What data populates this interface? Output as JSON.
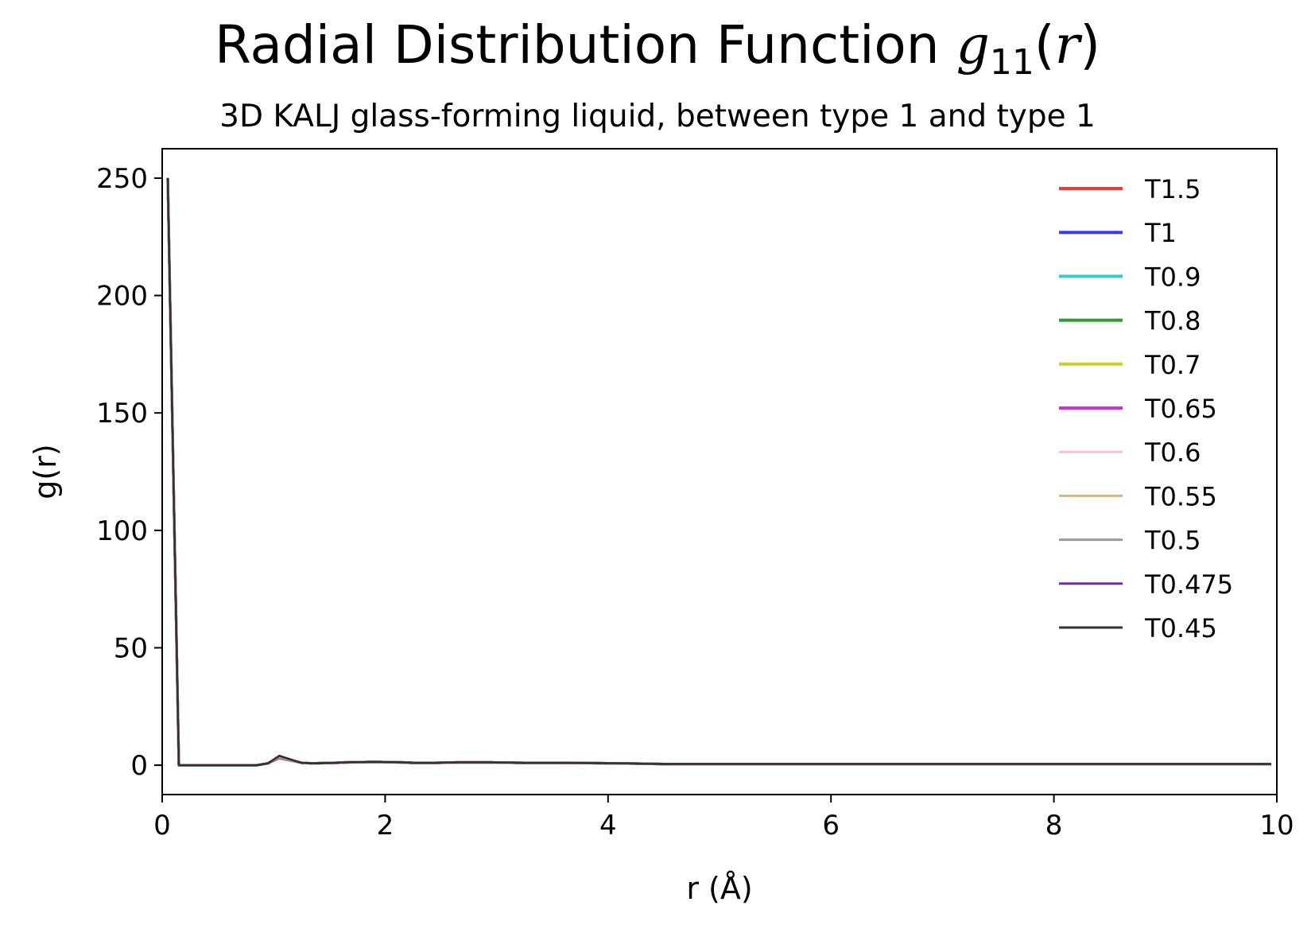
{
  "title": {
    "prefix": "Radial Distribution Function ",
    "func": "g",
    "subscript": "11",
    "arg_open": "(",
    "arg": "r",
    "arg_close": ")"
  },
  "subtitle": "3D KALJ glass-forming liquid, between type 1 and type 1",
  "chart_data": {
    "type": "line",
    "xlabel": "r (Å)",
    "ylabel": "g(r)",
    "xlim": [
      0,
      10
    ],
    "ylim": [
      -12.5,
      262.5
    ],
    "xticks": [
      0,
      2,
      4,
      6,
      8,
      10
    ],
    "yticks": [
      0,
      50,
      100,
      150,
      200,
      250
    ],
    "grid": false,
    "legend_position": "top-right",
    "x": [
      0.05,
      0.15,
      0.25,
      0.35,
      0.45,
      0.55,
      0.65,
      0.75,
      0.85,
      0.95,
      1.05,
      1.15,
      1.25,
      1.35,
      1.45,
      1.55,
      1.65,
      1.75,
      1.85,
      1.95,
      2.05,
      2.15,
      2.25,
      2.35,
      2.45,
      2.55,
      2.65,
      2.75,
      2.85,
      2.95,
      3.05,
      3.25,
      3.45,
      3.65,
      3.85,
      4.05,
      4.25,
      4.5,
      4.75,
      5.0,
      5.5,
      6.0,
      6.5,
      7.0,
      7.5,
      8.0,
      8.5,
      9.0,
      9.5,
      9.95
    ],
    "series": [
      {
        "name": "T1.5",
        "color": "#f03a3a",
        "values": [
          250,
          0,
          0,
          0,
          0,
          0,
          0,
          0,
          0,
          0.8,
          3.0,
          2.0,
          1.0,
          0.8,
          0.9,
          1.0,
          1.2,
          1.3,
          1.4,
          1.4,
          1.3,
          1.2,
          1.0,
          1.0,
          1.0,
          1.1,
          1.2,
          1.2,
          1.2,
          1.2,
          1.1,
          1.0,
          1.0,
          1.0,
          0.9,
          0.8,
          0.7,
          0.5,
          0.5,
          0.5,
          0.5,
          0.5,
          0.5,
          0.5,
          0.5,
          0.5,
          0.5,
          0.5,
          0.5,
          0.5
        ]
      },
      {
        "name": "T1",
        "color": "#3a3af0",
        "values": [
          250,
          0,
          0,
          0,
          0,
          0,
          0,
          0,
          0,
          0.8,
          3.2,
          2.1,
          1.0,
          0.8,
          0.9,
          1.0,
          1.2,
          1.3,
          1.4,
          1.4,
          1.3,
          1.2,
          1.0,
          1.0,
          1.0,
          1.1,
          1.2,
          1.2,
          1.2,
          1.2,
          1.1,
          1.0,
          1.0,
          1.0,
          0.9,
          0.8,
          0.7,
          0.5,
          0.5,
          0.5,
          0.5,
          0.5,
          0.5,
          0.5,
          0.5,
          0.5,
          0.5,
          0.5,
          0.5,
          0.5
        ]
      },
      {
        "name": "T0.9",
        "color": "#33cccc",
        "values": [
          250,
          0,
          0,
          0,
          0,
          0,
          0,
          0,
          0,
          0.8,
          3.3,
          2.1,
          1.0,
          0.8,
          0.9,
          1.0,
          1.2,
          1.3,
          1.4,
          1.4,
          1.3,
          1.2,
          1.0,
          1.0,
          1.0,
          1.1,
          1.2,
          1.2,
          1.2,
          1.2,
          1.1,
          1.0,
          1.0,
          1.0,
          0.9,
          0.8,
          0.7,
          0.5,
          0.5,
          0.5,
          0.5,
          0.5,
          0.5,
          0.5,
          0.5,
          0.5,
          0.5,
          0.5,
          0.5,
          0.5
        ]
      },
      {
        "name": "T0.8",
        "color": "#339933",
        "values": [
          250,
          0,
          0,
          0,
          0,
          0,
          0,
          0,
          0,
          0.8,
          3.4,
          2.2,
          1.0,
          0.8,
          0.9,
          1.0,
          1.2,
          1.3,
          1.4,
          1.4,
          1.3,
          1.2,
          1.0,
          1.0,
          1.0,
          1.1,
          1.2,
          1.2,
          1.2,
          1.2,
          1.1,
          1.0,
          1.0,
          1.0,
          0.9,
          0.8,
          0.7,
          0.5,
          0.5,
          0.5,
          0.5,
          0.5,
          0.5,
          0.5,
          0.5,
          0.5,
          0.5,
          0.5,
          0.5,
          0.5
        ]
      },
      {
        "name": "T0.7",
        "color": "#cccc33",
        "values": [
          250,
          0,
          0,
          0,
          0,
          0,
          0,
          0,
          0,
          0.8,
          3.5,
          2.2,
          1.0,
          0.8,
          0.9,
          1.0,
          1.2,
          1.3,
          1.4,
          1.4,
          1.3,
          1.2,
          1.0,
          1.0,
          1.0,
          1.1,
          1.2,
          1.2,
          1.2,
          1.2,
          1.1,
          1.0,
          1.0,
          1.0,
          0.9,
          0.8,
          0.7,
          0.5,
          0.5,
          0.5,
          0.5,
          0.5,
          0.5,
          0.5,
          0.5,
          0.5,
          0.5,
          0.5,
          0.5,
          0.5
        ]
      },
      {
        "name": "T0.65",
        "color": "#cc33cc",
        "values": [
          250,
          0,
          0,
          0,
          0,
          0,
          0,
          0,
          0,
          0.8,
          3.6,
          2.3,
          1.0,
          0.8,
          0.9,
          1.0,
          1.2,
          1.3,
          1.4,
          1.4,
          1.3,
          1.2,
          1.0,
          1.0,
          1.0,
          1.1,
          1.2,
          1.2,
          1.2,
          1.2,
          1.1,
          1.0,
          1.0,
          1.0,
          0.9,
          0.8,
          0.7,
          0.5,
          0.5,
          0.5,
          0.5,
          0.5,
          0.5,
          0.5,
          0.5,
          0.5,
          0.5,
          0.5,
          0.5,
          0.5
        ]
      },
      {
        "name": "T0.6",
        "color": "#ffc0cb",
        "values": [
          250,
          0,
          0,
          0,
          0,
          0,
          0,
          0,
          0,
          0.8,
          3.7,
          2.3,
          1.0,
          0.8,
          0.9,
          1.0,
          1.2,
          1.3,
          1.4,
          1.4,
          1.3,
          1.2,
          1.0,
          1.0,
          1.0,
          1.1,
          1.2,
          1.2,
          1.2,
          1.2,
          1.1,
          1.0,
          1.0,
          1.0,
          0.9,
          0.8,
          0.7,
          0.5,
          0.5,
          0.5,
          0.5,
          0.5,
          0.5,
          0.5,
          0.5,
          0.5,
          0.5,
          0.5,
          0.5,
          0.5
        ]
      },
      {
        "name": "T0.55",
        "color": "#d2b48c",
        "values": [
          250,
          0,
          0,
          0,
          0,
          0,
          0,
          0,
          0,
          0.8,
          3.8,
          2.4,
          1.0,
          0.8,
          0.9,
          1.0,
          1.2,
          1.3,
          1.4,
          1.4,
          1.3,
          1.2,
          1.0,
          1.0,
          1.0,
          1.1,
          1.2,
          1.2,
          1.2,
          1.2,
          1.1,
          1.0,
          1.0,
          1.0,
          0.9,
          0.8,
          0.7,
          0.5,
          0.5,
          0.5,
          0.5,
          0.5,
          0.5,
          0.5,
          0.5,
          0.5,
          0.5,
          0.5,
          0.5,
          0.5
        ]
      },
      {
        "name": "T0.5",
        "color": "#999999",
        "values": [
          250,
          0,
          0,
          0,
          0,
          0,
          0,
          0,
          0,
          0.8,
          3.9,
          2.4,
          1.0,
          0.8,
          0.9,
          1.0,
          1.2,
          1.3,
          1.4,
          1.4,
          1.3,
          1.2,
          1.0,
          1.0,
          1.0,
          1.1,
          1.2,
          1.2,
          1.2,
          1.2,
          1.1,
          1.0,
          1.0,
          1.0,
          0.9,
          0.8,
          0.7,
          0.5,
          0.5,
          0.5,
          0.5,
          0.5,
          0.5,
          0.5,
          0.5,
          0.5,
          0.5,
          0.5,
          0.5,
          0.5
        ]
      },
      {
        "name": "T0.475",
        "color": "#7030a0",
        "values": [
          250,
          0,
          0,
          0,
          0,
          0,
          0,
          0,
          0,
          0.8,
          4.0,
          2.5,
          1.0,
          0.8,
          0.9,
          1.0,
          1.2,
          1.3,
          1.4,
          1.4,
          1.3,
          1.2,
          1.0,
          1.0,
          1.0,
          1.1,
          1.2,
          1.2,
          1.2,
          1.2,
          1.1,
          1.0,
          1.0,
          1.0,
          0.9,
          0.8,
          0.7,
          0.5,
          0.5,
          0.5,
          0.5,
          0.5,
          0.5,
          0.5,
          0.5,
          0.5,
          0.5,
          0.5,
          0.5,
          0.5
        ]
      },
      {
        "name": "T0.45",
        "color": "#333333",
        "values": [
          250,
          0,
          0,
          0,
          0,
          0,
          0,
          0,
          0,
          0.8,
          4.0,
          2.5,
          1.0,
          0.8,
          0.9,
          1.0,
          1.2,
          1.3,
          1.4,
          1.4,
          1.3,
          1.2,
          1.0,
          1.0,
          1.0,
          1.1,
          1.2,
          1.2,
          1.2,
          1.2,
          1.1,
          1.0,
          1.0,
          1.0,
          0.9,
          0.8,
          0.7,
          0.5,
          0.5,
          0.5,
          0.5,
          0.5,
          0.5,
          0.5,
          0.5,
          0.5,
          0.5,
          0.5,
          0.5,
          0.5
        ]
      }
    ]
  }
}
